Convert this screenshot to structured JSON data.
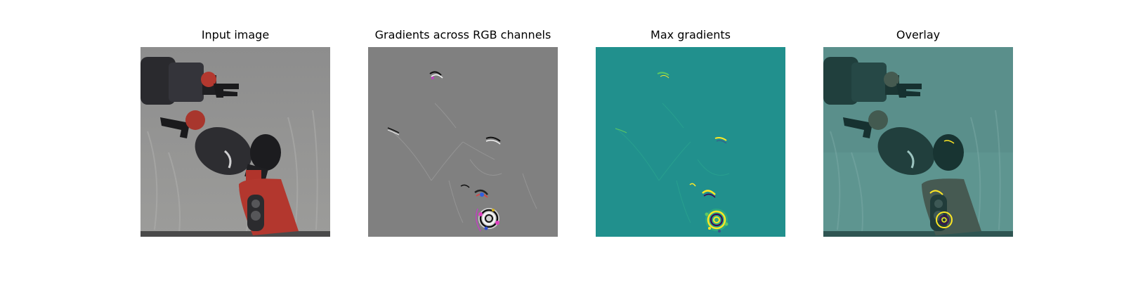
{
  "figure": {
    "panels": [
      {
        "title": "Input image"
      },
      {
        "title": "Gradients across RGB channels"
      },
      {
        "title": "Max gradients"
      },
      {
        "title": "Overlay"
      }
    ]
  },
  "colors": {
    "input_background": "#8c8c8c",
    "gradient_background": "#808080",
    "max_gradient_background": "#21908d",
    "overlay_tint": "#4a8a86",
    "robot_body_dark": "#2b2b2f",
    "robot_red": "#b33b32"
  }
}
